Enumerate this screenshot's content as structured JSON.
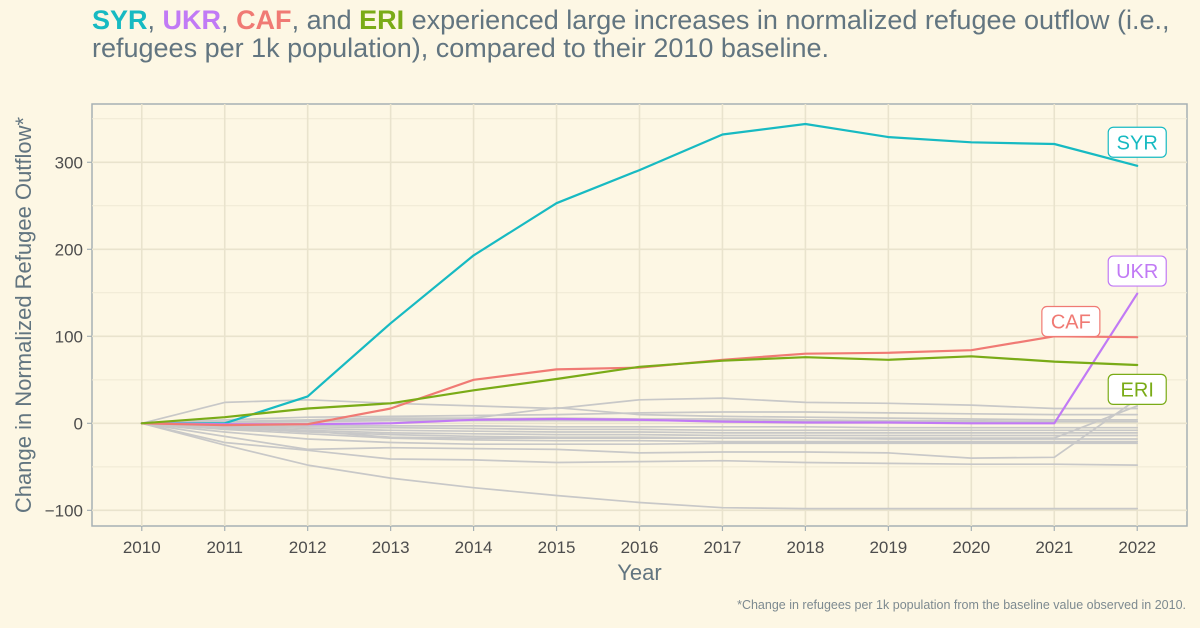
{
  "title": {
    "highlights": [
      {
        "text": "SYR",
        "color": "#17bac2"
      },
      {
        "text": "UKR",
        "color": "#c17af5"
      },
      {
        "text": "CAF",
        "color": "#f07a74"
      },
      {
        "text": "ERI",
        "color": "#7aab17"
      }
    ],
    "sep1": ", ",
    "sep2": ", ",
    "sep3": ", and ",
    "rest": " experienced large increases in normalized refugee outflow (i.e., refugees per 1k population), compared to their 2010 baseline."
  },
  "caption": "*Change in refugees per 1k population from the baseline value observed in 2010.",
  "chart_data": {
    "type": "line",
    "xlabel": "Year",
    "ylabel": "Change in Normalized Refugee Outflow*",
    "x": [
      2010,
      2011,
      2012,
      2013,
      2014,
      2015,
      2016,
      2017,
      2018,
      2019,
      2020,
      2021,
      2022
    ],
    "xlim": [
      2009.4,
      2022.6
    ],
    "ylim": [
      -118,
      367
    ],
    "yticks": [
      -100,
      0,
      100,
      200,
      300
    ],
    "grid": true,
    "series": [
      {
        "name": "SYR",
        "color": "#17bac2",
        "highlight": true,
        "values": [
          0,
          0,
          31,
          115,
          193,
          253,
          291,
          332,
          344,
          329,
          323,
          321,
          296
        ]
      },
      {
        "name": "UKR",
        "color": "#c17af5",
        "highlight": true,
        "values": [
          0,
          -1,
          -1,
          0,
          4,
          5,
          4,
          2,
          1,
          1,
          0,
          0,
          149
        ]
      },
      {
        "name": "CAF",
        "color": "#f07a74",
        "highlight": true,
        "values": [
          0,
          -2,
          -1,
          17,
          50,
          62,
          64,
          73,
          80,
          81,
          84,
          100,
          99
        ]
      },
      {
        "name": "ERI",
        "color": "#7aab17",
        "highlight": true,
        "values": [
          0,
          7,
          17,
          23,
          38,
          51,
          65,
          72,
          76,
          73,
          77,
          71,
          67
        ]
      },
      {
        "color": "#c8c8c8",
        "values": [
          0,
          24,
          27,
          23,
          20,
          17,
          27,
          29,
          24,
          23,
          21,
          17,
          17
        ]
      },
      {
        "color": "#c8c8c8",
        "values": [
          0,
          4,
          7,
          8,
          9,
          10,
          12,
          13,
          13,
          12,
          11,
          10,
          10
        ]
      },
      {
        "color": "#c8c8c8",
        "values": [
          0,
          2,
          4,
          6,
          6,
          18,
          10,
          8,
          7,
          6,
          5,
          4,
          4
        ]
      },
      {
        "color": "#c8c8c8",
        "values": [
          0,
          1,
          3,
          4,
          5,
          6,
          5,
          5,
          4,
          3,
          3,
          2,
          2
        ]
      },
      {
        "color": "#c8c8c8",
        "values": [
          0,
          1,
          2,
          3,
          3,
          3,
          3,
          3,
          3,
          3,
          2,
          2,
          2
        ]
      },
      {
        "color": "#c8c8c8",
        "values": [
          0,
          -1,
          -2,
          -3,
          -3,
          -4,
          -4,
          -4,
          -4,
          -5,
          -5,
          -5,
          -5
        ]
      },
      {
        "color": "#c8c8c8",
        "values": [
          0,
          -2,
          -4,
          -5,
          -6,
          -7,
          -7,
          -8,
          -8,
          -8,
          -8,
          -8,
          -8
        ]
      },
      {
        "color": "#c8c8c8",
        "values": [
          0,
          -3,
          -6,
          -8,
          -9,
          -10,
          -10,
          -11,
          -11,
          -11,
          -11,
          -11,
          -11
        ]
      },
      {
        "color": "#c8c8c8",
        "values": [
          0,
          -4,
          -8,
          -11,
          -12,
          -13,
          -13,
          -14,
          -14,
          -14,
          -14,
          -14,
          -14
        ]
      },
      {
        "color": "#c8c8c8",
        "values": [
          0,
          -5,
          -10,
          -13,
          -15,
          -16,
          -16,
          -17,
          -17,
          -18,
          -18,
          -18,
          -18
        ]
      },
      {
        "color": "#c8c8c8",
        "values": [
          0,
          -7,
          -12,
          -17,
          -19,
          -20,
          -20,
          -21,
          -21,
          -21,
          -21,
          -21,
          -21
        ]
      },
      {
        "color": "#c8c8c8",
        "values": [
          0,
          -6,
          -9,
          -16,
          -17,
          -17,
          -17,
          -17,
          -17,
          -17,
          -17,
          -17,
          20
        ]
      },
      {
        "color": "#c8c8c8",
        "values": [
          0,
          -10,
          -18,
          -22,
          -24,
          -24,
          -24,
          -23,
          -23,
          -23,
          -23,
          -23,
          -23
        ]
      },
      {
        "color": "#c8c8c8",
        "values": [
          0,
          -15,
          -30,
          -28,
          -29,
          -30,
          -34,
          -33,
          -33,
          -34,
          -40,
          -39,
          28
        ]
      },
      {
        "color": "#c8c8c8",
        "values": [
          0,
          -22,
          -31,
          -41,
          -42,
          -45,
          -44,
          -43,
          -45,
          -46,
          -47,
          -47,
          -48
        ]
      },
      {
        "color": "#c8c8c8",
        "values": [
          0,
          -25,
          -48,
          -63,
          -74,
          -83,
          -91,
          -97,
          -98,
          -98,
          -98,
          -98,
          -98
        ]
      }
    ],
    "labels": [
      {
        "text": "SYR",
        "color": "#17bac2",
        "x": 2022,
        "y": 323
      },
      {
        "text": "UKR",
        "color": "#c17af5",
        "x": 2022,
        "y": 175
      },
      {
        "text": "CAF",
        "color": "#f07a74",
        "x": 2021.2,
        "y": 117
      },
      {
        "text": "ERI",
        "color": "#7aab17",
        "x": 2022,
        "y": 39
      }
    ]
  }
}
